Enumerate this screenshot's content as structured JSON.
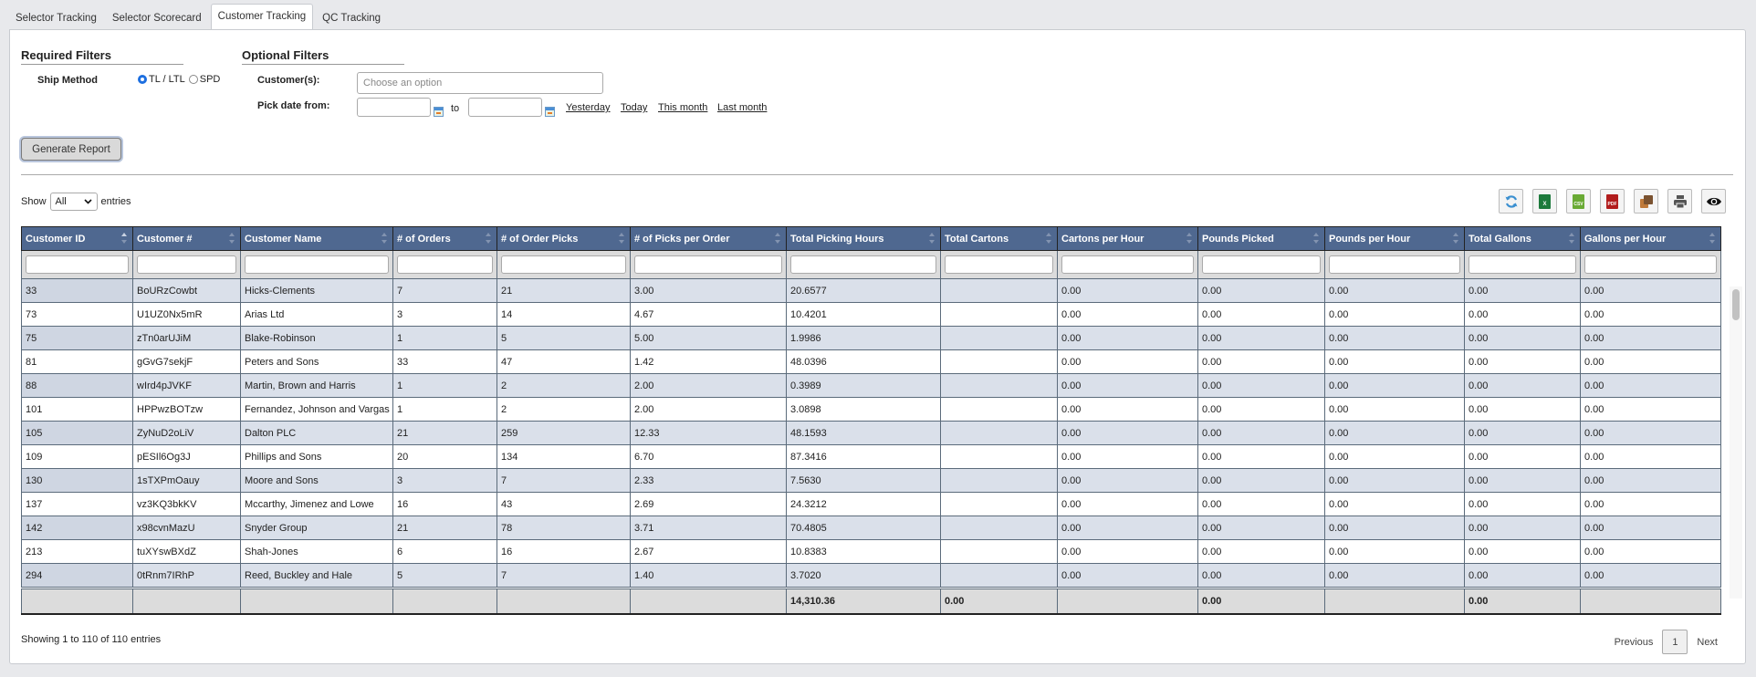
{
  "tabs": [
    {
      "label": "Selector Tracking",
      "active": false
    },
    {
      "label": "Selector Scorecard",
      "active": false
    },
    {
      "label": "Customer Tracking",
      "active": true
    },
    {
      "label": "QC Tracking",
      "active": false
    }
  ],
  "filters": {
    "required_title": "Required Filters",
    "optional_title": "Optional Filters",
    "ship_method_label": "Ship Method",
    "ship_method_options": [
      {
        "label": "TL / LTL",
        "checked": true
      },
      {
        "label": "SPD",
        "checked": false
      }
    ],
    "customers_label": "Customer(s):",
    "customers_placeholder": "Choose an option",
    "pick_date_label": "Pick date from:",
    "date_from": "",
    "date_to": "",
    "to_label": "to",
    "quick_links": [
      "Yesterday",
      "Today",
      "This month",
      "Last month"
    ],
    "generate_button": "Generate Report"
  },
  "table_controls": {
    "show_label": "Show",
    "show_value": "All",
    "entries_label": "entries",
    "toolbar_icons": [
      "refresh-icon",
      "excel-icon",
      "csv-icon",
      "pdf-icon",
      "copy-icon",
      "print-icon",
      "column-visibility-icon"
    ],
    "csv_text": "CSV",
    "pdf_text": "PDF",
    "excel_text": "X"
  },
  "table": {
    "columns": [
      "Customer ID",
      "Customer #",
      "Customer Name",
      "# of Orders",
      "# of Order Picks",
      "# of Picks per Order",
      "Total Picking Hours",
      "Total Cartons",
      "Cartons per Hour",
      "Pounds Picked",
      "Pounds per Hour",
      "Total Gallons",
      "Gallons per Hour"
    ],
    "sorted_column": 0,
    "rows": [
      [
        "33",
        "BoURzCowbt",
        "Hicks-Clements",
        "7",
        "21",
        "3.00",
        "20.6577",
        "",
        "0.00",
        "0.00",
        "0.00",
        "0.00",
        "0.00"
      ],
      [
        "73",
        "U1UZ0Nx5mR",
        "Arias Ltd",
        "3",
        "14",
        "4.67",
        "10.4201",
        "",
        "0.00",
        "0.00",
        "0.00",
        "0.00",
        "0.00"
      ],
      [
        "75",
        "zTn0arUJiM",
        "Blake-Robinson",
        "1",
        "5",
        "5.00",
        "1.9986",
        "",
        "0.00",
        "0.00",
        "0.00",
        "0.00",
        "0.00"
      ],
      [
        "81",
        "gGvG7sekjF",
        "Peters and Sons",
        "33",
        "47",
        "1.42",
        "48.0396",
        "",
        "0.00",
        "0.00",
        "0.00",
        "0.00",
        "0.00"
      ],
      [
        "88",
        "wIrd4pJVKF",
        "Martin, Brown and Harris",
        "1",
        "2",
        "2.00",
        "0.3989",
        "",
        "0.00",
        "0.00",
        "0.00",
        "0.00",
        "0.00"
      ],
      [
        "101",
        "HPPwzBOTzw",
        "Fernandez, Johnson and Vargas",
        "1",
        "2",
        "2.00",
        "3.0898",
        "",
        "0.00",
        "0.00",
        "0.00",
        "0.00",
        "0.00"
      ],
      [
        "105",
        "ZyNuD2oLiV",
        "Dalton PLC",
        "21",
        "259",
        "12.33",
        "48.1593",
        "",
        "0.00",
        "0.00",
        "0.00",
        "0.00",
        "0.00"
      ],
      [
        "109",
        "pESIl6Og3J",
        "Phillips and Sons",
        "20",
        "134",
        "6.70",
        "87.3416",
        "",
        "0.00",
        "0.00",
        "0.00",
        "0.00",
        "0.00"
      ],
      [
        "130",
        "1sTXPmOauy",
        "Moore and Sons",
        "3",
        "7",
        "2.33",
        "7.5630",
        "",
        "0.00",
        "0.00",
        "0.00",
        "0.00",
        "0.00"
      ],
      [
        "137",
        "vz3KQ3bkKV",
        "Mccarthy, Jimenez and Lowe",
        "16",
        "43",
        "2.69",
        "24.3212",
        "",
        "0.00",
        "0.00",
        "0.00",
        "0.00",
        "0.00"
      ],
      [
        "142",
        "x98cvnMazU",
        "Snyder Group",
        "21",
        "78",
        "3.71",
        "70.4805",
        "",
        "0.00",
        "0.00",
        "0.00",
        "0.00",
        "0.00"
      ],
      [
        "213",
        "tuXYswBXdZ",
        "Shah-Jones",
        "6",
        "16",
        "2.67",
        "10.8383",
        "",
        "0.00",
        "0.00",
        "0.00",
        "0.00",
        "0.00"
      ],
      [
        "294",
        "0tRnm7IRhP",
        "Reed, Buckley and Hale",
        "5",
        "7",
        "1.40",
        "3.7020",
        "",
        "0.00",
        "0.00",
        "0.00",
        "0.00",
        "0.00"
      ]
    ],
    "footer": [
      "",
      "",
      "",
      "",
      "",
      "",
      "14,310.36",
      "0.00",
      "",
      "0.00",
      "",
      "0.00",
      ""
    ]
  },
  "info_text": "Showing 1 to 110 of 110 entries",
  "pagination": {
    "previous": "Previous",
    "current": "1",
    "next": "Next"
  },
  "colors": {
    "header_bg": "#4f6890",
    "row_odd": "#dae0ea",
    "row_even": "#ffffff",
    "footer_bg": "#dcdcdc"
  }
}
